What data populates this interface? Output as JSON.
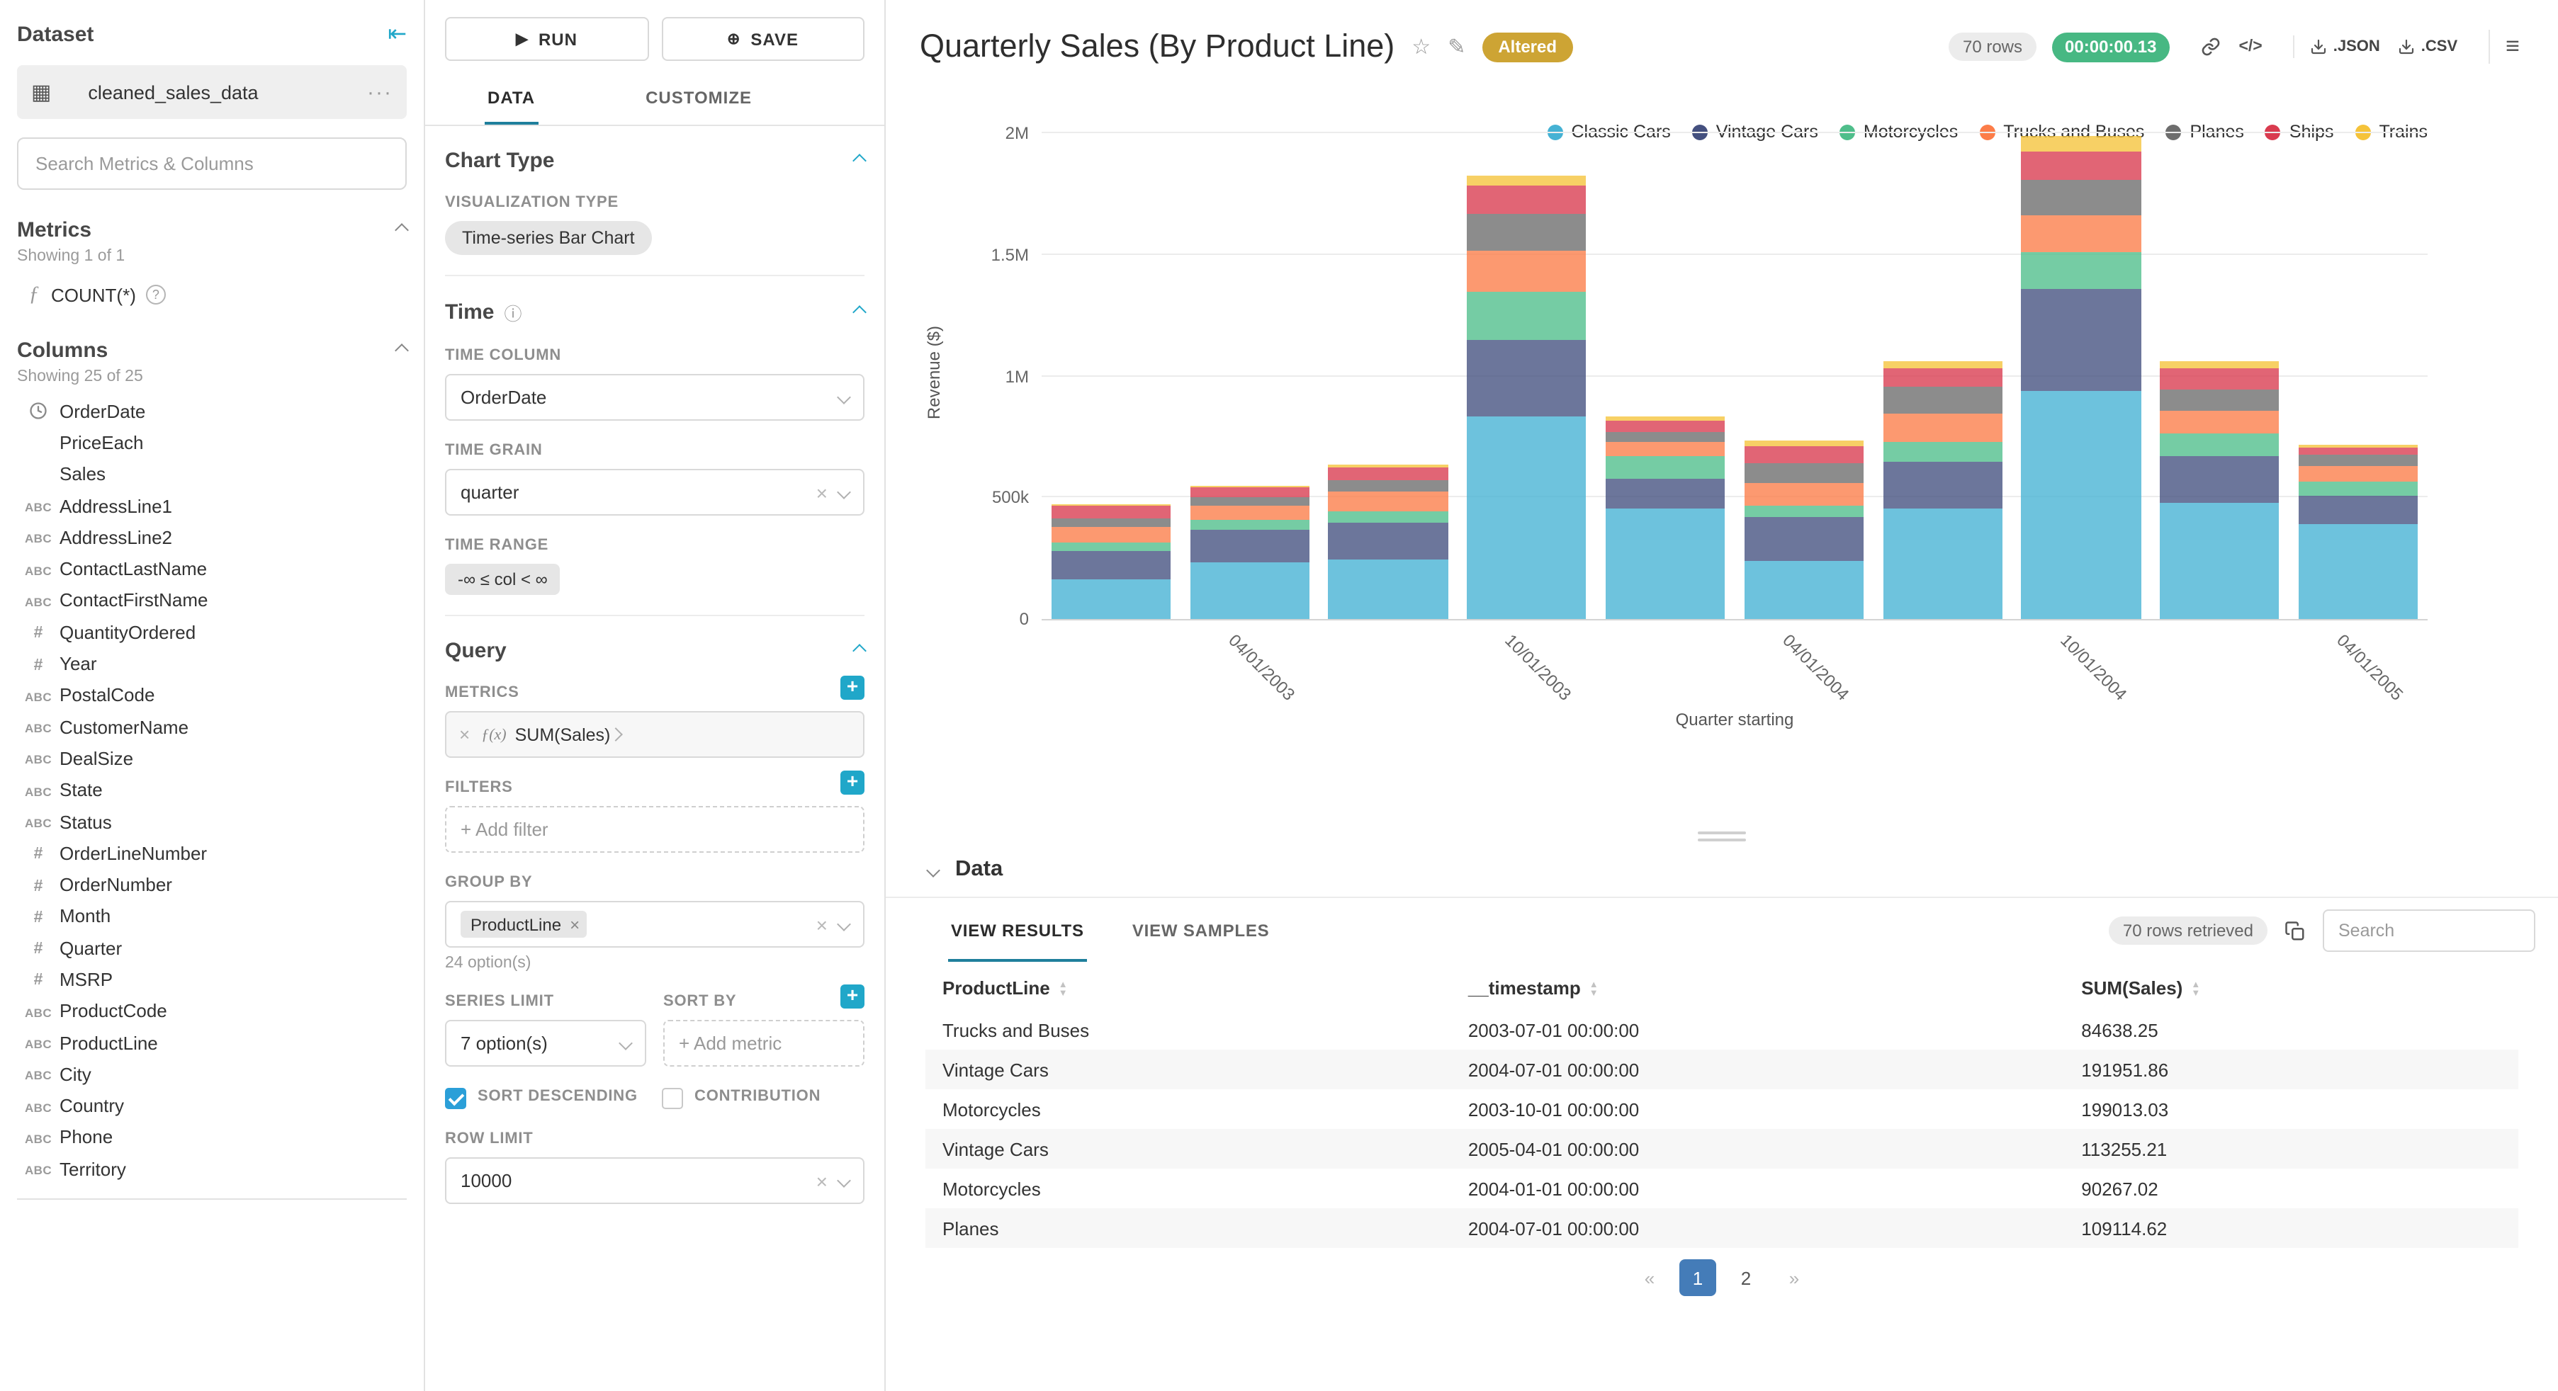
{
  "icons": {
    "collapse": "⇤",
    "grid": "▦",
    "more": "···",
    "f": "ƒ",
    "question": "?",
    "play": "▶",
    "save_plus": "⊕",
    "info": "ⓘ",
    "fx": "ƒ(x)",
    "chip_x": "×",
    "star": "☆",
    "edit": "✎",
    "code": "</>",
    "menu": "≡"
  },
  "sidebar": {
    "title": "Dataset",
    "dataset_name": "cleaned_sales_data",
    "search_placeholder": "Search Metrics & Columns",
    "metrics": {
      "title": "Metrics",
      "showing": "Showing 1 of 1",
      "items": [
        {
          "label": "COUNT(*)"
        }
      ]
    },
    "columns": {
      "title": "Columns",
      "showing": "Showing 25 of 25",
      "items": [
        {
          "t": "time",
          "label": "OrderDate"
        },
        {
          "t": "none",
          "label": "PriceEach"
        },
        {
          "t": "none",
          "label": "Sales"
        },
        {
          "t": "text",
          "label": "AddressLine1"
        },
        {
          "t": "text",
          "label": "AddressLine2"
        },
        {
          "t": "text",
          "label": "ContactLastName"
        },
        {
          "t": "text",
          "label": "ContactFirstName"
        },
        {
          "t": "num",
          "label": "QuantityOrdered"
        },
        {
          "t": "num",
          "label": "Year"
        },
        {
          "t": "text",
          "label": "PostalCode"
        },
        {
          "t": "text",
          "label": "CustomerName"
        },
        {
          "t": "text",
          "label": "DealSize"
        },
        {
          "t": "text",
          "label": "State"
        },
        {
          "t": "text",
          "label": "Status"
        },
        {
          "t": "num",
          "label": "OrderLineNumber"
        },
        {
          "t": "num",
          "label": "OrderNumber"
        },
        {
          "t": "num",
          "label": "Month"
        },
        {
          "t": "num",
          "label": "Quarter"
        },
        {
          "t": "num",
          "label": "MSRP"
        },
        {
          "t": "text",
          "label": "ProductCode"
        },
        {
          "t": "text",
          "label": "ProductLine"
        },
        {
          "t": "text",
          "label": "City"
        },
        {
          "t": "text",
          "label": "Country"
        },
        {
          "t": "text",
          "label": "Phone"
        },
        {
          "t": "text",
          "label": "Territory"
        }
      ]
    }
  },
  "controls": {
    "run_label": "RUN",
    "save_label": "SAVE",
    "tabs": {
      "0": "DATA",
      "1": "CUSTOMIZE"
    },
    "active_tab": "DATA",
    "chart_type": {
      "section": "Chart Type",
      "viz_type_label": "VISUALIZATION TYPE",
      "viz_type": "Time-series Bar Chart"
    },
    "time": {
      "section": "Time",
      "time_column_label": "TIME COLUMN",
      "time_column": "OrderDate",
      "time_grain_label": "TIME GRAIN",
      "time_grain": "quarter",
      "time_range_label": "TIME RANGE",
      "time_range": "-∞ ≤ col < ∞"
    },
    "query": {
      "section": "Query",
      "metrics_label": "METRICS",
      "metric": "SUM(Sales)",
      "filters_label": "FILTERS",
      "add_filter": "+ Add filter",
      "group_by_label": "GROUP BY",
      "group_by_value": "ProductLine",
      "group_by_options": "24 option(s)",
      "series_limit_label": "SERIES LIMIT",
      "series_limit": "7 option(s)",
      "sort_by_label": "SORT BY",
      "add_metric": "+ Add metric",
      "sort_descending_label": "SORT DESCENDING",
      "contribution_label": "CONTRIBUTION",
      "row_limit_label": "ROW LIMIT",
      "row_limit": "10000"
    }
  },
  "header": {
    "title": "Quarterly Sales (By Product Line)",
    "altered_badge": "Altered",
    "rows_badge": "70 rows",
    "timer": "00:00:00.13",
    "export_json": ".JSON",
    "export_csv": ".CSV"
  },
  "chart_data": {
    "type": "bar",
    "stacked": true,
    "title": "Quarterly Sales (By Product Line)",
    "xlabel": "Quarter starting",
    "ylabel": "Revenue ($)",
    "ylim": [
      0,
      2000000
    ],
    "grid": true,
    "legend_position": "top-right",
    "yticks": [
      {
        "v": 0,
        "label": "0"
      },
      {
        "v": 500000,
        "label": "500k"
      },
      {
        "v": 1000000,
        "label": "1M"
      },
      {
        "v": 1500000,
        "label": "1.5M"
      },
      {
        "v": 2000000,
        "label": "2M"
      }
    ],
    "x": [
      "2003-01-01",
      "2003-04-01",
      "2003-07-01",
      "2003-10-01",
      "2004-01-01",
      "2004-04-01",
      "2004-07-01",
      "2004-10-01",
      "2005-01-01",
      "2005-04-01"
    ],
    "xtick_labels": [
      "04/01/2003",
      "10/01/2003",
      "04/01/2004",
      "10/01/2004",
      "04/01/2005"
    ],
    "xtick_positions": [
      1,
      3,
      5,
      7,
      9
    ],
    "series": [
      {
        "name": "Classic Cars",
        "color": "#45b2d4",
        "values": [
          161000,
          231000,
          245000,
          836000,
          455000,
          240000,
          455000,
          940000,
          480000,
          393000
        ]
      },
      {
        "name": "Vintage Cars",
        "color": "#44507f",
        "values": [
          119000,
          136000,
          151000,
          315000,
          123000,
          178000,
          191951.86,
          420000,
          190000,
          113255.21
        ]
      },
      {
        "name": "Motorcycles",
        "color": "#4fbe8b",
        "values": [
          37000,
          42000,
          46000,
          199013.03,
          90267.02,
          46000,
          80000,
          150000,
          95000,
          60000
        ]
      },
      {
        "name": "Trucks and Buses",
        "color": "#fc7d49",
        "values": [
          62000,
          56000,
          84638.25,
          168000,
          61000,
          98000,
          118000,
          152000,
          93000,
          64000
        ]
      },
      {
        "name": "Planes",
        "color": "#6d6d6d",
        "values": [
          33000,
          39000,
          46000,
          148000,
          41000,
          79000,
          109114.62,
          143000,
          89000,
          44000
        ]
      },
      {
        "name": "Ships",
        "color": "#d93b4f",
        "values": [
          52000,
          36000,
          54000,
          118000,
          49000,
          69000,
          79000,
          118000,
          83000,
          34000
        ]
      },
      {
        "name": "Trains",
        "color": "#f5c33a",
        "values": [
          9000,
          9500,
          12000,
          39000,
          13000,
          24000,
          29000,
          63000,
          29000,
          8500
        ]
      }
    ]
  },
  "results": {
    "section_title": "Data",
    "tabs": {
      "0": "VIEW RESULTS",
      "1": "VIEW SAMPLES"
    },
    "active_tab": "VIEW RESULTS",
    "rows_retrieved": "70 rows retrieved",
    "search_placeholder": "Search",
    "columns": [
      "ProductLine",
      "__timestamp",
      "SUM(Sales)"
    ],
    "rows": [
      [
        "Trucks and Buses",
        "2003-07-01 00:00:00",
        "84638.25"
      ],
      [
        "Vintage Cars",
        "2004-07-01 00:00:00",
        "191951.86"
      ],
      [
        "Motorcycles",
        "2003-10-01 00:00:00",
        "199013.03"
      ],
      [
        "Vintage Cars",
        "2005-04-01 00:00:00",
        "113255.21"
      ],
      [
        "Motorcycles",
        "2004-01-01 00:00:00",
        "90267.02"
      ],
      [
        "Planes",
        "2004-07-01 00:00:00",
        "109114.62"
      ]
    ],
    "pagination": [
      "«",
      "1",
      "2",
      "»"
    ],
    "active_page": "1"
  }
}
